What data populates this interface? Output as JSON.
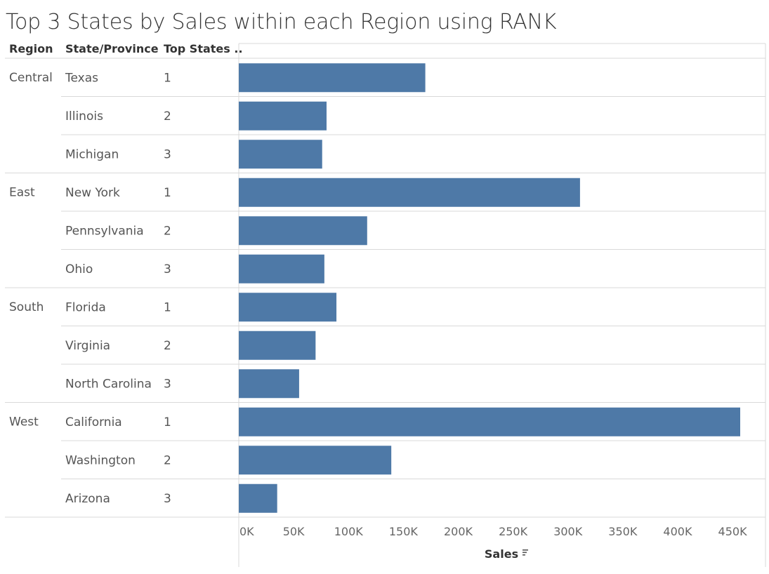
{
  "title": "Top 3 States by Sales within each Region using RANK",
  "headers": {
    "region": "Region",
    "state": "State/Province",
    "rank": "Top States .."
  },
  "colors": {
    "bar": "#4e79a7"
  },
  "chart_data": {
    "type": "bar",
    "orientation": "horizontal",
    "title": "Top 3 States by Sales within each Region using RANK",
    "xlabel": "Sales",
    "xlim": [
      0,
      480000
    ],
    "x_ticks": [
      "0K",
      "50K",
      "100K",
      "150K",
      "200K",
      "250K",
      "300K",
      "350K",
      "400K",
      "450K"
    ],
    "x_tick_values": [
      0,
      50000,
      100000,
      150000,
      200000,
      250000,
      300000,
      350000,
      400000,
      450000
    ],
    "groups": [
      {
        "region": "Central",
        "rows": [
          {
            "state": "Texas",
            "rank": "1",
            "sales": 170000
          },
          {
            "state": "Illinois",
            "rank": "2",
            "sales": 80000
          },
          {
            "state": "Michigan",
            "rank": "3",
            "sales": 76000
          }
        ]
      },
      {
        "region": "East",
        "rows": [
          {
            "state": "New York",
            "rank": "1",
            "sales": 311000
          },
          {
            "state": "Pennsylvania",
            "rank": "2",
            "sales": 117000
          },
          {
            "state": "Ohio",
            "rank": "3",
            "sales": 78000
          }
        ]
      },
      {
        "region": "South",
        "rows": [
          {
            "state": "Florida",
            "rank": "1",
            "sales": 89000
          },
          {
            "state": "Virginia",
            "rank": "2",
            "sales": 70000
          },
          {
            "state": "North Carolina",
            "rank": "3",
            "sales": 55000
          }
        ]
      },
      {
        "region": "West",
        "rows": [
          {
            "state": "California",
            "rank": "1",
            "sales": 457000
          },
          {
            "state": "Washington",
            "rank": "2",
            "sales": 139000
          },
          {
            "state": "Arizona",
            "rank": "3",
            "sales": 35000
          }
        ]
      }
    ]
  }
}
